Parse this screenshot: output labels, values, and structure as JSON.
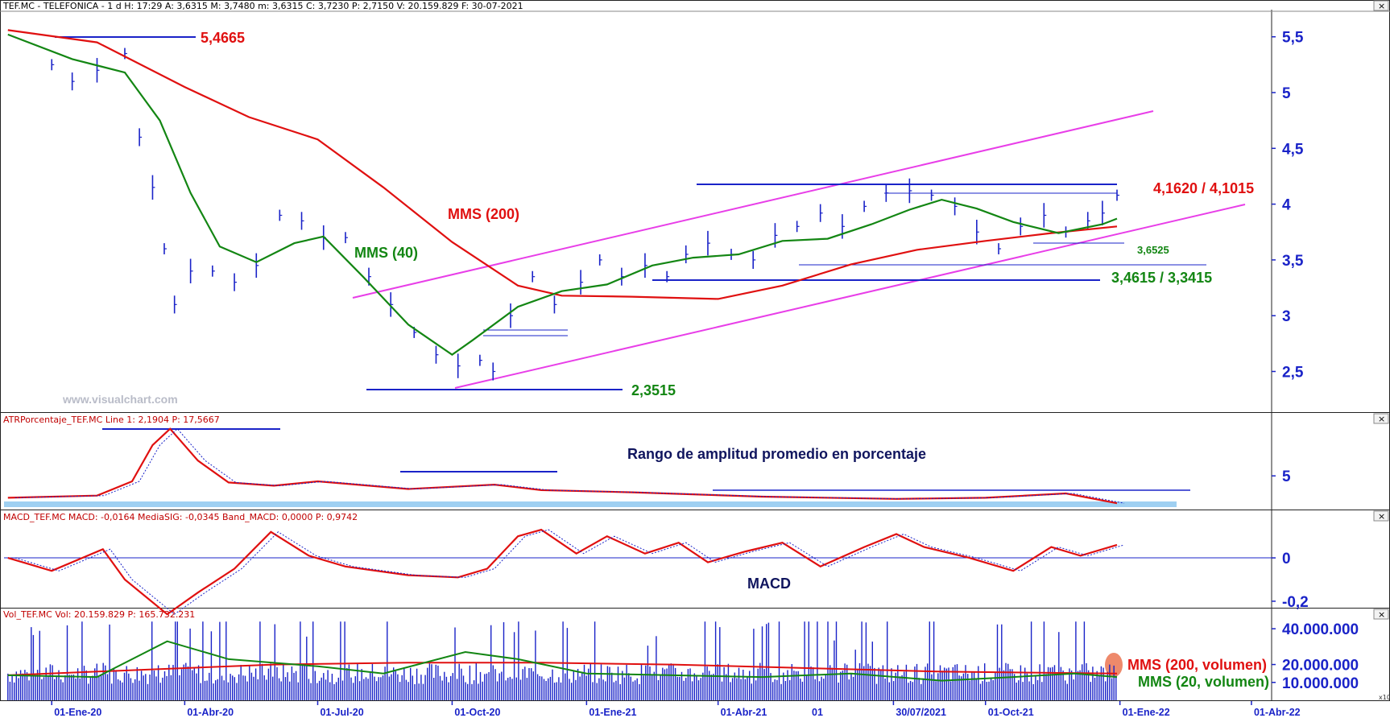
{
  "panels": {
    "price": {
      "header": "TEF.MC - TELEFONICA -  1 d H: 17:29  A: 3,6315  M: 3,7480  m: 3,6315  C: 3,7230  P: 2,7150  V: 20.159.829  F: 30-07-2021"
    },
    "atr": {
      "header": "ATRPorcentaje_TEF.MC  Line 1: 2,1904  P: 17,5667"
    },
    "macd": {
      "header": "MACD_TEF.MC  MACD: -0,0164  MediaSIG: -0,0345  Band_MACD: 0,0000  P: 0,9742"
    },
    "vol": {
      "header": "Vol_TEF.MC  Vol: 20.159.829  P: 165.732.231"
    }
  },
  "watermark": "www.visualchart.com",
  "x_axis": {
    "labels": [
      "01-Ene-20",
      "01-Abr-20",
      "01-Jul-20",
      "01-Oct-20",
      "01-Ene-21",
      "01-Abr-21",
      "30/07/2021",
      "01-Oct-21",
      "01-Ene-22",
      "01-Abr-22"
    ],
    "cursor_marker": "01"
  },
  "chart_data": [
    {
      "type": "line",
      "panel": "price",
      "y_ticks": [
        "5,5",
        "5",
        "4,5",
        "4",
        "3,5",
        "3",
        "2,5"
      ],
      "ylim": [
        2.15,
        5.7
      ],
      "x_range": [
        "2019-12-01",
        "2022-04-20"
      ],
      "series": [
        {
          "name": "MMS (200)",
          "color": "#e01010",
          "x": [
            "2019-12-02",
            "2020-02-01",
            "2020-04-01",
            "2020-05-15",
            "2020-07-01",
            "2020-08-15",
            "2020-10-01",
            "2020-11-15",
            "2020-12-15",
            "2021-02-01",
            "2021-04-01",
            "2021-05-15",
            "2021-07-01",
            "2021-08-15",
            "2021-10-01",
            "2021-11-15",
            "2021-12-30"
          ],
          "y": [
            5.56,
            5.45,
            5.05,
            4.78,
            4.58,
            4.15,
            3.66,
            3.27,
            3.18,
            3.17,
            3.15,
            3.27,
            3.46,
            3.59,
            3.67,
            3.74,
            3.8
          ]
        },
        {
          "name": "MMS (40)",
          "color": "#138613",
          "x": [
            "2019-12-02",
            "2020-01-15",
            "2020-02-20",
            "2020-03-15",
            "2020-04-05",
            "2020-04-25",
            "2020-05-20",
            "2020-06-15",
            "2020-07-05",
            "2020-08-01",
            "2020-09-01",
            "2020-10-01",
            "2020-10-15",
            "2020-11-15",
            "2020-12-15",
            "2021-01-15",
            "2021-02-15",
            "2021-03-15",
            "2021-04-15",
            "2021-05-15",
            "2021-06-15",
            "2021-07-15",
            "2021-08-10",
            "2021-09-01",
            "2021-09-25",
            "2021-10-20",
            "2021-11-20",
            "2021-12-20",
            "2021-12-30"
          ],
          "y": [
            5.52,
            5.3,
            5.18,
            4.75,
            4.1,
            3.62,
            3.48,
            3.65,
            3.71,
            3.35,
            2.92,
            2.65,
            2.78,
            3.08,
            3.22,
            3.28,
            3.45,
            3.52,
            3.55,
            3.67,
            3.69,
            3.82,
            3.95,
            4.04,
            3.96,
            3.84,
            3.74,
            3.82,
            3.87
          ]
        }
      ],
      "bars": {
        "x": [
          "2020-01-01",
          "2020-01-15",
          "2020-02-01",
          "2020-02-20",
          "2020-03-01",
          "2020-03-10",
          "2020-03-18",
          "2020-03-25",
          "2020-04-05",
          "2020-04-20",
          "2020-05-05",
          "2020-05-20",
          "2020-06-05",
          "2020-06-20",
          "2020-07-05",
          "2020-07-20",
          "2020-08-05",
          "2020-08-20",
          "2020-09-05",
          "2020-09-20",
          "2020-10-05",
          "2020-10-20",
          "2020-10-29",
          "2020-11-10",
          "2020-11-25",
          "2020-12-10",
          "2020-12-28",
          "2021-01-10",
          "2021-01-25",
          "2021-02-10",
          "2021-02-25",
          "2021-03-10",
          "2021-03-25",
          "2021-04-10",
          "2021-04-25",
          "2021-05-10",
          "2021-05-25",
          "2021-06-10",
          "2021-06-25",
          "2021-07-10",
          "2021-07-25",
          "2021-08-10",
          "2021-08-25",
          "2021-09-10",
          "2021-09-25",
          "2021-10-10",
          "2021-10-25",
          "2021-11-10",
          "2021-11-25",
          "2021-12-10",
          "2021-12-20",
          "2021-12-30"
        ],
        "y": [
          5.25,
          5.1,
          5.2,
          5.35,
          4.6,
          4.15,
          3.6,
          3.1,
          3.4,
          3.4,
          3.3,
          3.45,
          3.9,
          3.85,
          3.7,
          3.7,
          3.35,
          3.1,
          2.85,
          2.65,
          2.55,
          2.6,
          2.5,
          3.0,
          3.35,
          3.1,
          3.3,
          3.5,
          3.35,
          3.45,
          3.35,
          3.55,
          3.65,
          3.55,
          3.5,
          3.72,
          3.8,
          3.92,
          3.8,
          3.98,
          4.1,
          4.12,
          4.08,
          3.98,
          3.75,
          3.6,
          3.8,
          3.9,
          3.75,
          3.85,
          3.92,
          4.08
        ]
      },
      "annotations": [
        {
          "text": "5,4665",
          "color": "#e01010"
        },
        {
          "text": "MMS (200)",
          "color": "#e01010"
        },
        {
          "text": "MMS (40)",
          "color": "#138613"
        },
        {
          "text": "2,3515",
          "color": "#138613"
        },
        {
          "text": "4,1620 / 4,1015",
          "color": "#e01010"
        },
        {
          "text": "3,6525",
          "color": "#138613"
        },
        {
          "text": "3,4615 / 3,3415",
          "color": "#138613"
        }
      ]
    },
    {
      "type": "line",
      "panel": "atr",
      "title": "Rango de amplitud promedio en porcentaje",
      "y_ticks": [
        "5"
      ],
      "ylim": [
        2.0,
        9.5
      ],
      "series": [
        {
          "name": "Line 1",
          "color": "#e01010",
          "x": [
            "2019-12-02",
            "2020-02-01",
            "2020-02-25",
            "2020-03-10",
            "2020-03-22",
            "2020-04-10",
            "2020-05-01",
            "2020-06-01",
            "2020-07-01",
            "2020-09-01",
            "2020-10-30",
            "2020-12-01",
            "2021-02-01",
            "2021-05-01",
            "2021-08-01",
            "2021-10-01",
            "2021-11-25",
            "2021-12-30"
          ],
          "y": [
            3.0,
            3.2,
            4.5,
            7.8,
            9.3,
            6.4,
            4.4,
            4.1,
            4.5,
            3.8,
            4.2,
            3.7,
            3.5,
            3.1,
            2.9,
            3.0,
            3.4,
            2.5
          ]
        }
      ]
    },
    {
      "type": "line",
      "panel": "macd",
      "title": "MACD",
      "y_ticks": [
        "0",
        "-0,2"
      ],
      "ylim": [
        -0.23,
        0.16
      ],
      "series": [
        {
          "name": "MACD",
          "color": "#e01010",
          "x": [
            "2019-12-02",
            "2020-01-01",
            "2020-02-05",
            "2020-02-20",
            "2020-03-20",
            "2020-04-10",
            "2020-05-05",
            "2020-05-30",
            "2020-06-25",
            "2020-07-20",
            "2020-09-01",
            "2020-10-05",
            "2020-10-25",
            "2020-11-15",
            "2020-12-01",
            "2020-12-25",
            "2021-01-15",
            "2021-02-10",
            "2021-03-05",
            "2021-03-25",
            "2021-04-20",
            "2021-05-15",
            "2021-06-10",
            "2021-07-10",
            "2021-08-01",
            "2021-08-20",
            "2021-09-20",
            "2021-10-20",
            "2021-11-15",
            "2021-12-05",
            "2021-12-30"
          ],
          "y": [
            0.0,
            -0.06,
            0.04,
            -0.1,
            -0.26,
            -0.16,
            -0.05,
            0.12,
            0.01,
            -0.04,
            -0.08,
            -0.09,
            -0.05,
            0.1,
            0.13,
            0.02,
            0.1,
            0.02,
            0.07,
            -0.02,
            0.03,
            0.07,
            -0.04,
            0.05,
            0.11,
            0.05,
            0.0,
            -0.06,
            0.05,
            0.01,
            0.06
          ]
        }
      ]
    },
    {
      "type": "bar",
      "panel": "vol",
      "y_ticks": [
        "40.000.000",
        "20.000.000",
        "10.000.000"
      ],
      "ylim": [
        0,
        45000000
      ],
      "series": [
        {
          "name": "MMS (200, volumen)",
          "color": "#e01010",
          "x": [
            "2019-12-02",
            "2020-03-01",
            "2020-06-01",
            "2020-09-01",
            "2020-12-01",
            "2021-03-01",
            "2021-06-01",
            "2021-09-01",
            "2021-12-30"
          ],
          "y": [
            14000000,
            17000000,
            20000000,
            21000000,
            21000000,
            20000000,
            18000000,
            16000000,
            15000000
          ]
        },
        {
          "name": "MMS (20, volumen)",
          "color": "#138613",
          "x": [
            "2019-12-02",
            "2020-02-01",
            "2020-03-20",
            "2020-05-01",
            "2020-07-01",
            "2020-08-15",
            "2020-10-10",
            "2020-11-15",
            "2021-01-01",
            "2021-03-01",
            "2021-05-01",
            "2021-07-01",
            "2021-09-01",
            "2021-10-20",
            "2021-12-01",
            "2021-12-30"
          ],
          "y": [
            14000000,
            13000000,
            33000000,
            23000000,
            19000000,
            15000000,
            27000000,
            23000000,
            15000000,
            14000000,
            13000000,
            15000000,
            11000000,
            13000000,
            15000000,
            13000000
          ]
        }
      ]
    }
  ]
}
